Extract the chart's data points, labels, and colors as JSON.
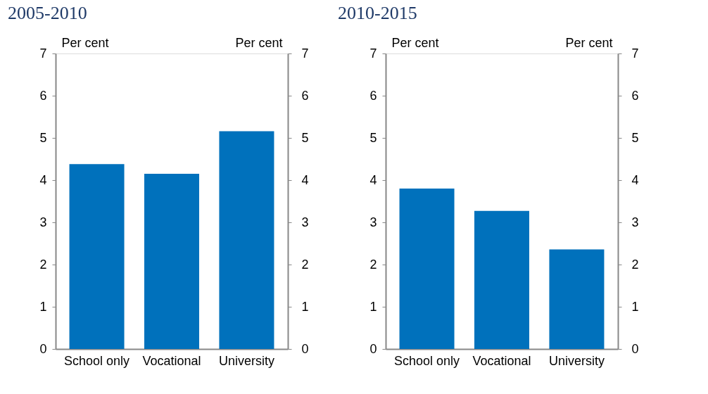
{
  "chart_data": [
    {
      "type": "bar",
      "title": "2005-2010",
      "ylabel": "Per cent",
      "y2label": "Per cent",
      "categories": [
        "School only",
        "Vocational",
        "University"
      ],
      "values": [
        4.38,
        4.15,
        5.16
      ],
      "color": "#0071bc",
      "ylim": [
        0,
        7
      ],
      "yticks": [
        0,
        1,
        2,
        3,
        4,
        5,
        6,
        7
      ],
      "y2lim": [
        0,
        7
      ],
      "y2ticks": [
        0,
        1,
        2,
        3,
        4,
        5,
        6,
        7
      ]
    },
    {
      "type": "bar",
      "title": "2010-2015",
      "ylabel": "Per cent",
      "y2label": "Per cent",
      "categories": [
        "School only",
        "Vocational",
        "University"
      ],
      "values": [
        3.8,
        3.27,
        2.36
      ],
      "color": "#0071bc",
      "ylim": [
        0,
        7
      ],
      "yticks": [
        0,
        1,
        2,
        3,
        4,
        5,
        6,
        7
      ],
      "y2lim": [
        0,
        7
      ],
      "y2ticks": [
        0,
        1,
        2,
        3,
        4,
        5,
        6,
        7
      ]
    }
  ]
}
